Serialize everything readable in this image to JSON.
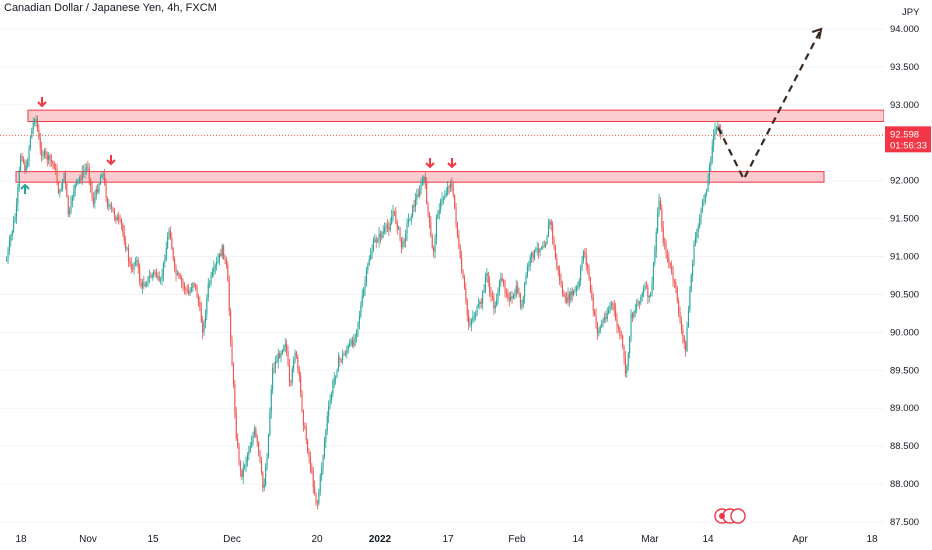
{
  "chart_data": {
    "type": "candlestick",
    "title": "Canadian Dollar / Japanese Yen, 4h, FXCM",
    "currency": "JPY",
    "y_ticks": [
      "94.000",
      "93.500",
      "93.000",
      "92.500",
      "92.000",
      "91.500",
      "91.000",
      "90.500",
      "90.000",
      "89.500",
      "89.000",
      "88.500",
      "88.000",
      "87.500"
    ],
    "ylim": [
      87.5,
      94.0
    ],
    "x_ticks": [
      {
        "label": "18",
        "bold": false
      },
      {
        "label": "Nov",
        "bold": false
      },
      {
        "label": "15",
        "bold": false
      },
      {
        "label": "Dec",
        "bold": false
      },
      {
        "label": "20",
        "bold": false
      },
      {
        "label": "2022",
        "bold": true
      },
      {
        "label": "17",
        "bold": false
      },
      {
        "label": "Feb",
        "bold": false
      },
      {
        "label": "14",
        "bold": false
      },
      {
        "label": "Mar",
        "bold": false
      },
      {
        "label": "14",
        "bold": false
      },
      {
        "label": "Apr",
        "bold": false
      },
      {
        "label": "18",
        "bold": false
      }
    ],
    "current_price": {
      "value": "92.598",
      "countdown": "01:56:33"
    },
    "resistance_zone": {
      "low": 92.78,
      "high": 92.93
    },
    "support_zone": {
      "low": 91.98,
      "high": 92.12
    },
    "projected_path": [
      {
        "x": "Mar 16",
        "y": 92.7
      },
      {
        "x": "Mar 21",
        "y": 92.02
      },
      {
        "x": "Apr 6",
        "y": 94.0
      }
    ],
    "price_path": [
      {
        "x": "Oct 15",
        "y": 90.95
      },
      {
        "x": "Oct 16",
        "y": 91.3
      },
      {
        "x": "Oct 17",
        "y": 91.6
      },
      {
        "x": "Oct 18",
        "y": 92.4
      },
      {
        "x": "Oct 19",
        "y": 92.1
      },
      {
        "x": "Oct 20",
        "y": 92.6
      },
      {
        "x": "Oct 21",
        "y": 92.88
      },
      {
        "x": "Oct 22",
        "y": 92.4
      },
      {
        "x": "Oct 25",
        "y": 92.2
      },
      {
        "x": "Oct 26",
        "y": 91.8
      },
      {
        "x": "Oct 27",
        "y": 92.1
      },
      {
        "x": "Oct 28",
        "y": 91.5
      },
      {
        "x": "Oct 29",
        "y": 91.9
      },
      {
        "x": "Nov 1",
        "y": 92.2
      },
      {
        "x": "Nov 2",
        "y": 91.7
      },
      {
        "x": "Nov 3",
        "y": 91.9
      },
      {
        "x": "Nov 4",
        "y": 92.15
      },
      {
        "x": "Nov 5",
        "y": 91.7
      },
      {
        "x": "Nov 8",
        "y": 91.4
      },
      {
        "x": "Nov 9",
        "y": 91.1
      },
      {
        "x": "Nov 10",
        "y": 90.8
      },
      {
        "x": "Nov 11",
        "y": 91.0
      },
      {
        "x": "Nov 12",
        "y": 90.6
      },
      {
        "x": "Nov 15",
        "y": 90.8
      },
      {
        "x": "Nov 16",
        "y": 90.6
      },
      {
        "x": "Nov 17",
        "y": 91.0
      },
      {
        "x": "Nov 18",
        "y": 91.4
      },
      {
        "x": "Nov 19",
        "y": 90.8
      },
      {
        "x": "Nov 22",
        "y": 90.5
      },
      {
        "x": "Nov 23",
        "y": 90.7
      },
      {
        "x": "Nov 24",
        "y": 90.4
      },
      {
        "x": "Nov 25",
        "y": 90.0
      },
      {
        "x": "Nov 26",
        "y": 90.6
      },
      {
        "x": "Nov 29",
        "y": 91.1
      },
      {
        "x": "Nov 30",
        "y": 90.8
      },
      {
        "x": "Dec 1",
        "y": 89.6
      },
      {
        "x": "Dec 2",
        "y": 88.6
      },
      {
        "x": "Dec 3",
        "y": 88.1
      },
      {
        "x": "Dec 6",
        "y": 88.7
      },
      {
        "x": "Dec 7",
        "y": 88.4
      },
      {
        "x": "Dec 8",
        "y": 87.9
      },
      {
        "x": "Dec 9",
        "y": 88.5
      },
      {
        "x": "Dec 10",
        "y": 89.5
      },
      {
        "x": "Dec 13",
        "y": 89.9
      },
      {
        "x": "Dec 14",
        "y": 89.2
      },
      {
        "x": "Dec 15",
        "y": 89.8
      },
      {
        "x": "Dec 16",
        "y": 89.4
      },
      {
        "x": "Dec 17",
        "y": 88.8
      },
      {
        "x": "Dec 20",
        "y": 87.7
      },
      {
        "x": "Dec 21",
        "y": 88.3
      },
      {
        "x": "Dec 22",
        "y": 88.9
      },
      {
        "x": "Dec 23",
        "y": 89.3
      },
      {
        "x": "Dec 24",
        "y": 89.6
      },
      {
        "x": "Dec 27",
        "y": 89.9
      },
      {
        "x": "Dec 28",
        "y": 90.2
      },
      {
        "x": "Dec 29",
        "y": 90.6
      },
      {
        "x": "Dec 30",
        "y": 91.0
      },
      {
        "x": "Dec 31",
        "y": 91.2
      },
      {
        "x": "Jan 3",
        "y": 91.4
      },
      {
        "x": "Jan 4",
        "y": 91.6
      },
      {
        "x": "Jan 5",
        "y": 91.4
      },
      {
        "x": "Jan 6",
        "y": 91.1
      },
      {
        "x": "Jan 7",
        "y": 91.4
      },
      {
        "x": "Jan 10",
        "y": 91.9
      },
      {
        "x": "Jan 11",
        "y": 92.05
      },
      {
        "x": "Jan 12",
        "y": 91.5
      },
      {
        "x": "Jan 13",
        "y": 91.0
      },
      {
        "x": "Jan 14",
        "y": 91.6
      },
      {
        "x": "Jan 17",
        "y": 92.0
      },
      {
        "x": "Jan 18",
        "y": 91.6
      },
      {
        "x": "Jan 19",
        "y": 91.0
      },
      {
        "x": "Jan 20",
        "y": 90.6
      },
      {
        "x": "Jan 21",
        "y": 90.1
      },
      {
        "x": "Jan 24",
        "y": 90.4
      },
      {
        "x": "Jan 25",
        "y": 90.8
      },
      {
        "x": "Jan 26",
        "y": 90.5
      },
      {
        "x": "Jan 27",
        "y": 90.3
      },
      {
        "x": "Jan 28",
        "y": 90.7
      },
      {
        "x": "Jan 31",
        "y": 90.4
      },
      {
        "x": "Feb 1",
        "y": 90.6
      },
      {
        "x": "Feb 2",
        "y": 90.3
      },
      {
        "x": "Feb 3",
        "y": 90.8
      },
      {
        "x": "Feb 4",
        "y": 91.0
      },
      {
        "x": "Feb 7",
        "y": 91.2
      },
      {
        "x": "Feb 8",
        "y": 91.5
      },
      {
        "x": "Feb 9",
        "y": 91.0
      },
      {
        "x": "Feb 10",
        "y": 90.7
      },
      {
        "x": "Feb 11",
        "y": 90.4
      },
      {
        "x": "Feb 14",
        "y": 90.6
      },
      {
        "x": "Feb 15",
        "y": 91.1
      },
      {
        "x": "Feb 16",
        "y": 90.8
      },
      {
        "x": "Feb 17",
        "y": 90.3
      },
      {
        "x": "Feb 18",
        "y": 90.0
      },
      {
        "x": "Feb 21",
        "y": 90.4
      },
      {
        "x": "Feb 22",
        "y": 90.1
      },
      {
        "x": "Feb 23",
        "y": 89.9
      },
      {
        "x": "Feb 24",
        "y": 89.4
      },
      {
        "x": "Feb 25",
        "y": 90.2
      },
      {
        "x": "Feb 28",
        "y": 90.6
      },
      {
        "x": "Mar 1",
        "y": 90.4
      },
      {
        "x": "Mar 2",
        "y": 91.0
      },
      {
        "x": "Mar 3",
        "y": 91.8
      },
      {
        "x": "Mar 4",
        "y": 91.2
      },
      {
        "x": "Mar 7",
        "y": 90.5
      },
      {
        "x": "Mar 8",
        "y": 90.0
      },
      {
        "x": "Mar 9",
        "y": 89.8
      },
      {
        "x": "Mar 10",
        "y": 90.6
      },
      {
        "x": "Mar 11",
        "y": 91.2
      },
      {
        "x": "Mar 14",
        "y": 92.0
      },
      {
        "x": "Mar 15",
        "y": 92.6
      },
      {
        "x": "Mar 16",
        "y": 92.72
      },
      {
        "x": "Mar 17",
        "y": 92.6
      }
    ]
  }
}
